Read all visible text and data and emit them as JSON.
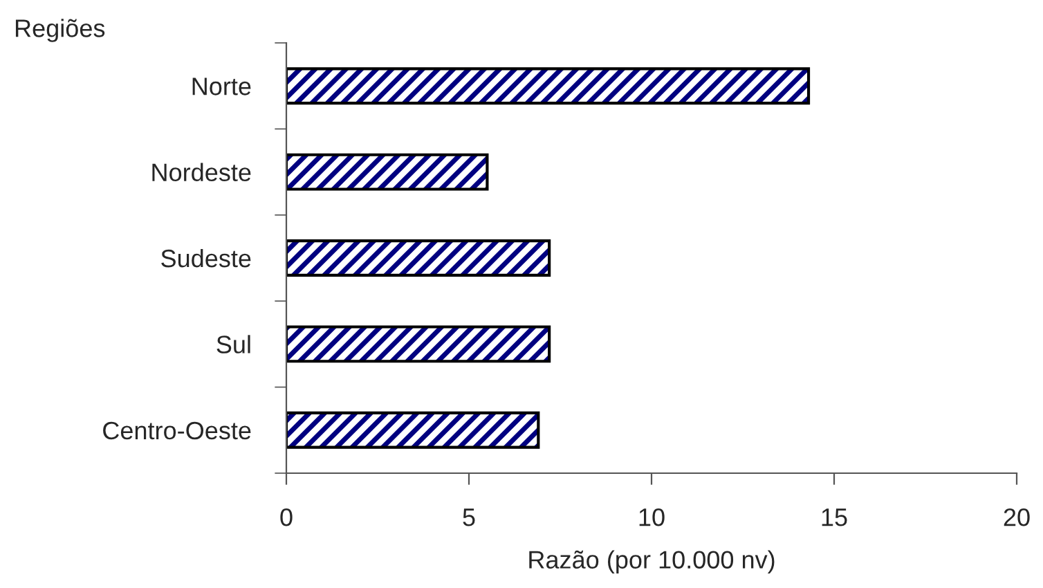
{
  "chart_data": {
    "type": "bar",
    "orientation": "horizontal",
    "ylabel": "Regiões",
    "xlabel": "Razão (por 10.000 nv)",
    "categories": [
      "Norte",
      "Nordeste",
      "Sudeste",
      "Sul",
      "Centro-Oeste"
    ],
    "series": [
      {
        "color": "#000080",
        "values": [
          14.3,
          5.5,
          7.2,
          7.2,
          6.9
        ]
      }
    ],
    "xlim": [
      0,
      20
    ],
    "xticks": [
      0,
      5,
      10,
      15,
      20
    ],
    "grid": false,
    "legend": false
  }
}
